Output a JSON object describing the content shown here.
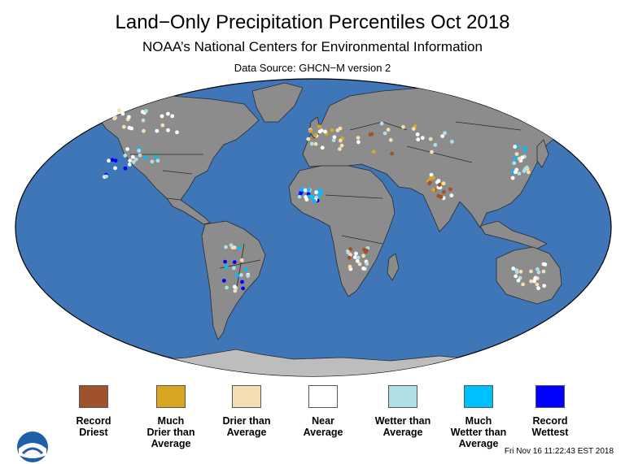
{
  "header": {
    "title": "Land−Only Precipitation Percentiles Oct 2018",
    "subtitle": "NOAA’s National Centers for Environmental Information",
    "source": "Data Source: GHCN−M version 2"
  },
  "colors": {
    "ocean": "#3f76b8",
    "land": "#8c8c8c",
    "ice": "#bdbdbd",
    "border": "#2a2a2a"
  },
  "legend": [
    {
      "label": "Record\nDriest",
      "color": "#a0522d"
    },
    {
      "label": "Much\nDrier than\nAverage",
      "color": "#daa520"
    },
    {
      "label": "Drier than\nAverage",
      "color": "#f5deb3"
    },
    {
      "label": "Near\nAverage",
      "color": "#ffffff"
    },
    {
      "label": "Wetter than\nAverage",
      "color": "#b0e0e6"
    },
    {
      "label": "Much\nWetter than\nAverage",
      "color": "#00bfff"
    },
    {
      "label": "Record\nWettest",
      "color": "#0000ff"
    }
  ],
  "footer": {
    "timestamp": "Fri Nov 16 11:22:43 EST 2018",
    "logo_icon": "noaa-logo-icon"
  }
}
